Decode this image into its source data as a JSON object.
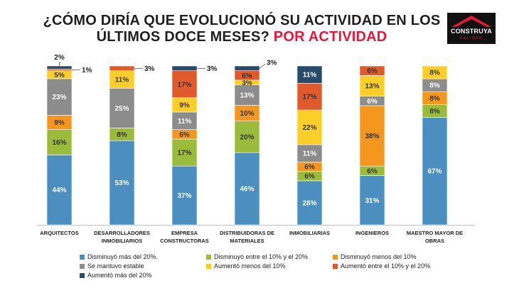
{
  "header": {
    "title_line1": "¿CÓMO DIRÍA QUE EVOLUCIONÓ SU ACTIVIDAD EN LOS",
    "title_line2": "ÚLTIMOS DOCE MESES?",
    "title_accent": "POR ACTIVIDAD"
  },
  "logo": {
    "name": "CONSTRUYA",
    "sub": "CALIDAD"
  },
  "colors": {
    "dis20": "#4a8fc0",
    "dis10_20": "#9bbb3b",
    "dis_menos10": "#f5961f",
    "estable": "#8c8c8c",
    "aum_menos10": "#fbcf27",
    "aum10_20": "#e05a2b",
    "aum20": "#274b6b"
  },
  "chart_data": {
    "type": "bar",
    "stacked": true,
    "normalized_percent": true,
    "categories": [
      "ARQUITECTOS",
      "DESARROLLADORES INMOBILIARIOS",
      "EMPRESA CONSTRUCTORAS",
      "DISTRIBUIDORAS DE MATERIALES",
      "INMOBILIARIAS",
      "INGENIEROS",
      "MAESTRO MAYOR DE OBRAS"
    ],
    "category_lines": [
      [
        "ARQUITECTOS"
      ],
      [
        "DESARROLLADORES",
        "INMOBILIARIOS"
      ],
      [
        "EMPRESA",
        "CONSTRUCTORAS"
      ],
      [
        "DISTRIBUIDORAS DE",
        "MATERIALES"
      ],
      [
        "INMOBILIARIAS"
      ],
      [
        "INGENIEROS"
      ],
      [
        "MAESTRO MAYOR DE",
        "OBRAS"
      ]
    ],
    "series": [
      {
        "key": "dis20",
        "name": "Disminuyó más del 20%.",
        "values": [
          44,
          53,
          37,
          46,
          28,
          31,
          67
        ],
        "labels": [
          "44%",
          "53%",
          "37%",
          "46%",
          "28%",
          "31%",
          "67%"
        ]
      },
      {
        "key": "dis10_20",
        "name": "Disminuyó entre el 10% y el 20%",
        "values": [
          16,
          8,
          17,
          20,
          6,
          6,
          8
        ],
        "labels": [
          "16%",
          "8%",
          "17%",
          "20%",
          "6%",
          "6%",
          "8%"
        ]
      },
      {
        "key": "dis_menos10",
        "name": "Disminuyó menos del 10%",
        "values": [
          9,
          0,
          6,
          10,
          6,
          38,
          8
        ],
        "labels": [
          "9%",
          "",
          "6%",
          "10%",
          "6%",
          "38%",
          "8%"
        ]
      },
      {
        "key": "estable",
        "name": "Se mantuvo estable",
        "values": [
          23,
          25,
          11,
          13,
          11,
          6,
          8
        ],
        "labels": [
          "23%",
          "25%",
          "11%",
          "13%",
          "11%",
          "6%",
          "8%"
        ]
      },
      {
        "key": "aum_menos10",
        "name": "Aumentó menos del 10%",
        "values": [
          5,
          11,
          9,
          3,
          22,
          13,
          8
        ],
        "labels": [
          "5%",
          "11%",
          "9%",
          "3%",
          "22%",
          "13%",
          "8%"
        ]
      },
      {
        "key": "aum10_20",
        "name": "Aumentó entre el 10% y el 20%",
        "values": [
          1,
          3,
          17,
          6,
          17,
          6,
          0
        ],
        "labels": [
          "",
          "",
          "17%",
          "6%",
          "17%",
          "6%",
          ""
        ]
      },
      {
        "key": "aum20",
        "name": "Aumentó más del 20%",
        "values": [
          2,
          0,
          3,
          3,
          11,
          0,
          0
        ],
        "labels": [
          "",
          "",
          "",
          "",
          "11%",
          "",
          ""
        ]
      }
    ],
    "callouts": [
      {
        "bar": 0,
        "series": "aum20",
        "text": "2%",
        "side": "top"
      },
      {
        "bar": 0,
        "series": "aum10_20",
        "text": "1%",
        "side": "right"
      },
      {
        "bar": 1,
        "series": "aum10_20",
        "text": "3%",
        "side": "right"
      },
      {
        "bar": 2,
        "series": "aum20",
        "text": "3%",
        "side": "right"
      },
      {
        "bar": 3,
        "series": "aum20",
        "text": "3%",
        "side": "right-up"
      }
    ],
    "legend_order": [
      "dis20",
      "dis10_20",
      "dis_menos10",
      "estable",
      "aum_menos10",
      "aum10_20",
      "aum20"
    ]
  }
}
